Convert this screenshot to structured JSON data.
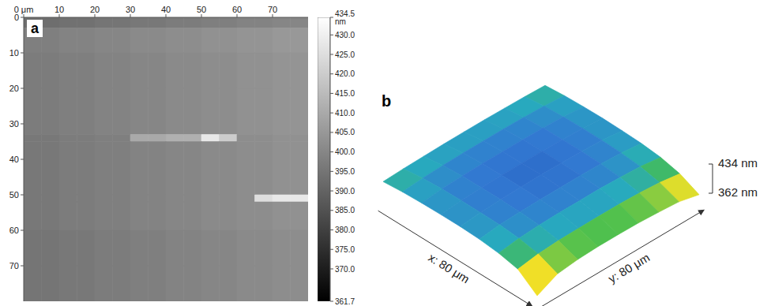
{
  "chart_data": [
    {
      "type": "heatmap",
      "title": "a",
      "xlim": [
        0,
        80
      ],
      "ylim": [
        0,
        80
      ],
      "xticks": [
        {
          "value": 0,
          "label": "0 μm"
        },
        10,
        20,
        30,
        40,
        50,
        60,
        70
      ],
      "yticks": [
        0,
        10,
        20,
        30,
        40,
        50,
        60,
        70
      ],
      "x_edges": [
        0,
        5,
        10,
        15,
        20,
        25,
        30,
        35,
        40,
        45,
        50,
        55,
        60,
        65,
        70,
        75,
        80
      ],
      "y_edges": [
        0,
        3,
        10,
        20,
        33,
        35,
        50,
        52,
        60,
        70,
        80
      ],
      "cells": [
        [
          393,
          393,
          394,
          394,
          395,
          395,
          396,
          396,
          397,
          397,
          398,
          398,
          399,
          399,
          400,
          400
        ],
        [
          398,
          398,
          399,
          399,
          400,
          400,
          401,
          401,
          402,
          402,
          403,
          403,
          404,
          404,
          405,
          405
        ],
        [
          397,
          397,
          398,
          398,
          399,
          399,
          400,
          400,
          401,
          401,
          402,
          402,
          403,
          403,
          404,
          404
        ],
        [
          397,
          397,
          398,
          398,
          399,
          399,
          400,
          400,
          401,
          401,
          402,
          402,
          403,
          403,
          404,
          404
        ],
        [
          396,
          396,
          397,
          397,
          398,
          398,
          410,
          410,
          412,
          412,
          428,
          420,
          402,
          402,
          403,
          403
        ],
        [
          396,
          396,
          397,
          397,
          398,
          398,
          399,
          399,
          400,
          400,
          401,
          401,
          402,
          402,
          403,
          403
        ],
        [
          396,
          396,
          397,
          397,
          398,
          398,
          399,
          399,
          400,
          400,
          401,
          401,
          402,
          425,
          428,
          428
        ],
        [
          396,
          396,
          397,
          397,
          398,
          398,
          399,
          399,
          400,
          400,
          401,
          401,
          402,
          402,
          403,
          403
        ],
        [
          395,
          395,
          396,
          396,
          397,
          397,
          398,
          398,
          399,
          399,
          400,
          400,
          401,
          401,
          402,
          402
        ],
        [
          395,
          395,
          396,
          396,
          397,
          397,
          398,
          398,
          399,
          399,
          400,
          400,
          401,
          401,
          402,
          402
        ]
      ],
      "colorbar": {
        "range": [
          361.7,
          434.5
        ],
        "ticks": [
          {
            "value": 434.5,
            "label": "434.5 nm"
          },
          {
            "value": 430,
            "label": "430.0"
          },
          {
            "value": 425,
            "label": "425.0"
          },
          {
            "value": 420,
            "label": "420.0"
          },
          {
            "value": 415,
            "label": "415.0"
          },
          {
            "value": 410,
            "label": "410.0"
          },
          {
            "value": 405,
            "label": "405.0"
          },
          {
            "value": 400,
            "label": "400.0"
          },
          {
            "value": 395,
            "label": "395.0"
          },
          {
            "value": 390,
            "label": "390.0"
          },
          {
            "value": 385,
            "label": "385.0"
          },
          {
            "value": 380,
            "label": "380.0"
          },
          {
            "value": 375,
            "label": "375.0"
          },
          {
            "value": 370,
            "label": "370.0"
          },
          361.7
        ]
      }
    },
    {
      "type": "surface",
      "title": "b",
      "xlabel": "x: 80 μm",
      "ylabel": "y: 80 μm",
      "xlim": [
        0,
        80
      ],
      "ylim": [
        0,
        80
      ],
      "zlim": [
        362,
        434
      ],
      "zticks": [
        {
          "value": 434,
          "label": "434 nm"
        },
        {
          "value": 362,
          "label": "362 nm"
        }
      ],
      "x": [
        0,
        10,
        20,
        30,
        40,
        50,
        60,
        70,
        80
      ],
      "y": [
        0,
        10,
        20,
        30,
        40,
        50,
        60,
        70,
        80
      ],
      "z": [
        [
          414,
          416,
          417,
          418,
          418,
          418,
          417,
          416,
          414
        ],
        [
          418,
          422,
          424,
          425,
          425,
          425,
          424,
          422,
          418
        ],
        [
          420,
          425,
          427,
          428,
          428,
          428,
          427,
          425,
          420
        ],
        [
          421,
          426,
          428,
          429,
          429,
          429,
          428,
          426,
          421
        ],
        [
          421,
          426,
          428,
          429,
          430,
          429,
          428,
          426,
          420
        ],
        [
          419,
          425,
          427,
          428,
          428,
          428,
          427,
          424,
          418
        ],
        [
          414,
          421,
          424,
          425,
          425,
          425,
          423,
          420,
          413
        ],
        [
          404,
          412,
          415,
          416,
          416,
          416,
          414,
          410,
          402
        ],
        [
          368,
          392,
          398,
          400,
          400,
          399,
          396,
          392,
          380
        ]
      ]
    }
  ]
}
